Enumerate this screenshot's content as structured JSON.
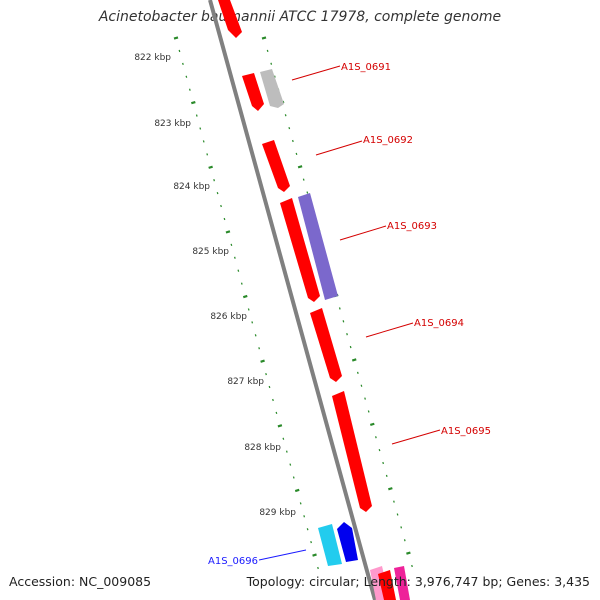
{
  "title": "Acinetobacter baumannii ATCC 17978, complete genome",
  "footer": {
    "accession": "Accession: NC_009085",
    "summary": "Topology: circular; Length: 3,976,747 bp; Genes: 3,435"
  },
  "colors": {
    "backbone": "#808080",
    "tick": "#2a8a2a",
    "forward_gene": "#ff0000",
    "label_red": "#d40000",
    "label_blue": "#1a1aff",
    "purple_gene": "#7b68cc",
    "gray_gene": "#bdbdbd",
    "cyan_gene": "#22ccee",
    "blue_gene": "#0000ee",
    "pink_gene": "#ff99cc",
    "magenta_gene": "#ee2299"
  },
  "scale": {
    "ticks": [
      "822 kbp",
      "823 kbp",
      "824 kbp",
      "825 kbp",
      "826 kbp",
      "827 kbp",
      "828 kbp",
      "829 kbp"
    ]
  },
  "genes": [
    {
      "label": "A1S_0691",
      "color": "forward_gene"
    },
    {
      "label": "A1S_0692",
      "color": "forward_gene"
    },
    {
      "label": "A1S_0693",
      "color": "forward_gene"
    },
    {
      "label": "A1S_0694",
      "color": "forward_gene"
    },
    {
      "label": "A1S_0695",
      "color": "forward_gene"
    },
    {
      "label": "A1S_0696",
      "color": "blue_gene"
    }
  ]
}
